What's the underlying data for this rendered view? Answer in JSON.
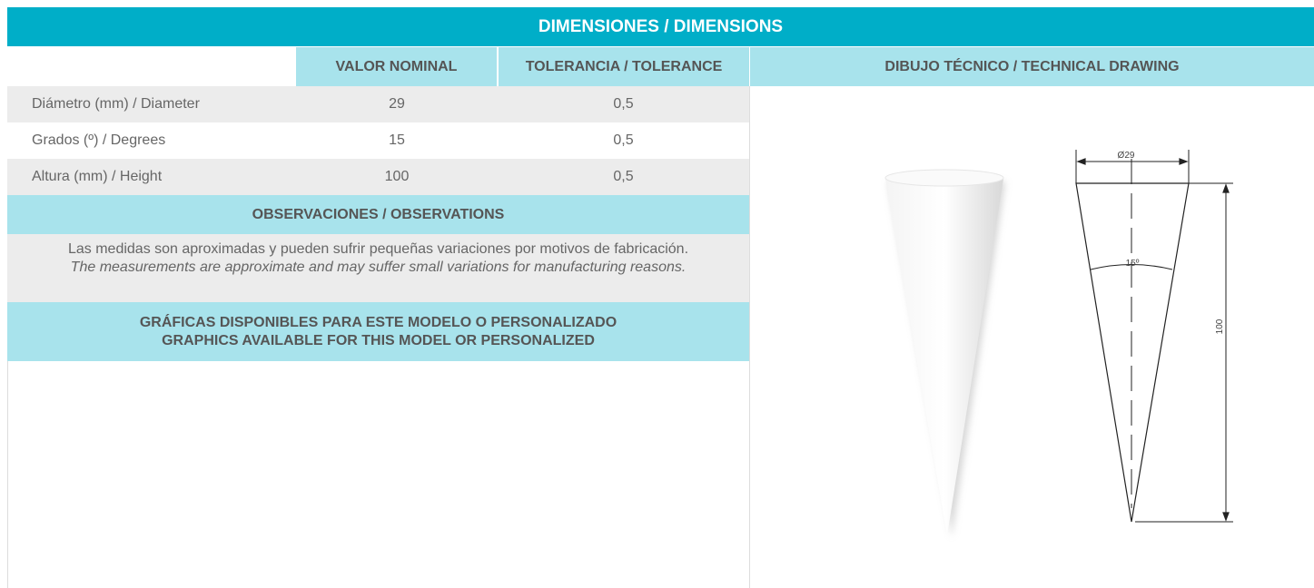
{
  "header": {
    "title": "DIMENSIONES / DIMENSIONS"
  },
  "table": {
    "headers": [
      "VALOR NOMINAL",
      "TOLERANCIA / TOLERANCE"
    ],
    "rows": [
      [
        "Diámetro (mm) / Diameter",
        "29",
        "0,5"
      ],
      [
        "Grados (º) / Degrees",
        "15",
        "0,5"
      ],
      [
        "Altura (mm) / Height",
        "100",
        "0,5"
      ]
    ]
  },
  "observations": {
    "title": "OBSERVACIONES / OBSERVATIONS",
    "lines": [
      "Las medidas son aproximadas y pueden sufrir pequeñas variaciones por motivos de fabricación.",
      "The measurements are approximate and may suffer small variations for manufacturing reasons."
    ]
  },
  "graphics": {
    "lines": [
      "GRÁFICAS DISPONIBLES PARA ESTE MODELO O PERSONALIZADO",
      "GRAPHICS AVAILABLE FOR THIS MODEL OR PERSONALIZED"
    ]
  },
  "drawing": {
    "title": "DIBUJO TÉCNICO / TECHNICAL DRAWING",
    "diameter_label": "Ø29",
    "angle_label": "15º",
    "height_label": "100"
  }
}
